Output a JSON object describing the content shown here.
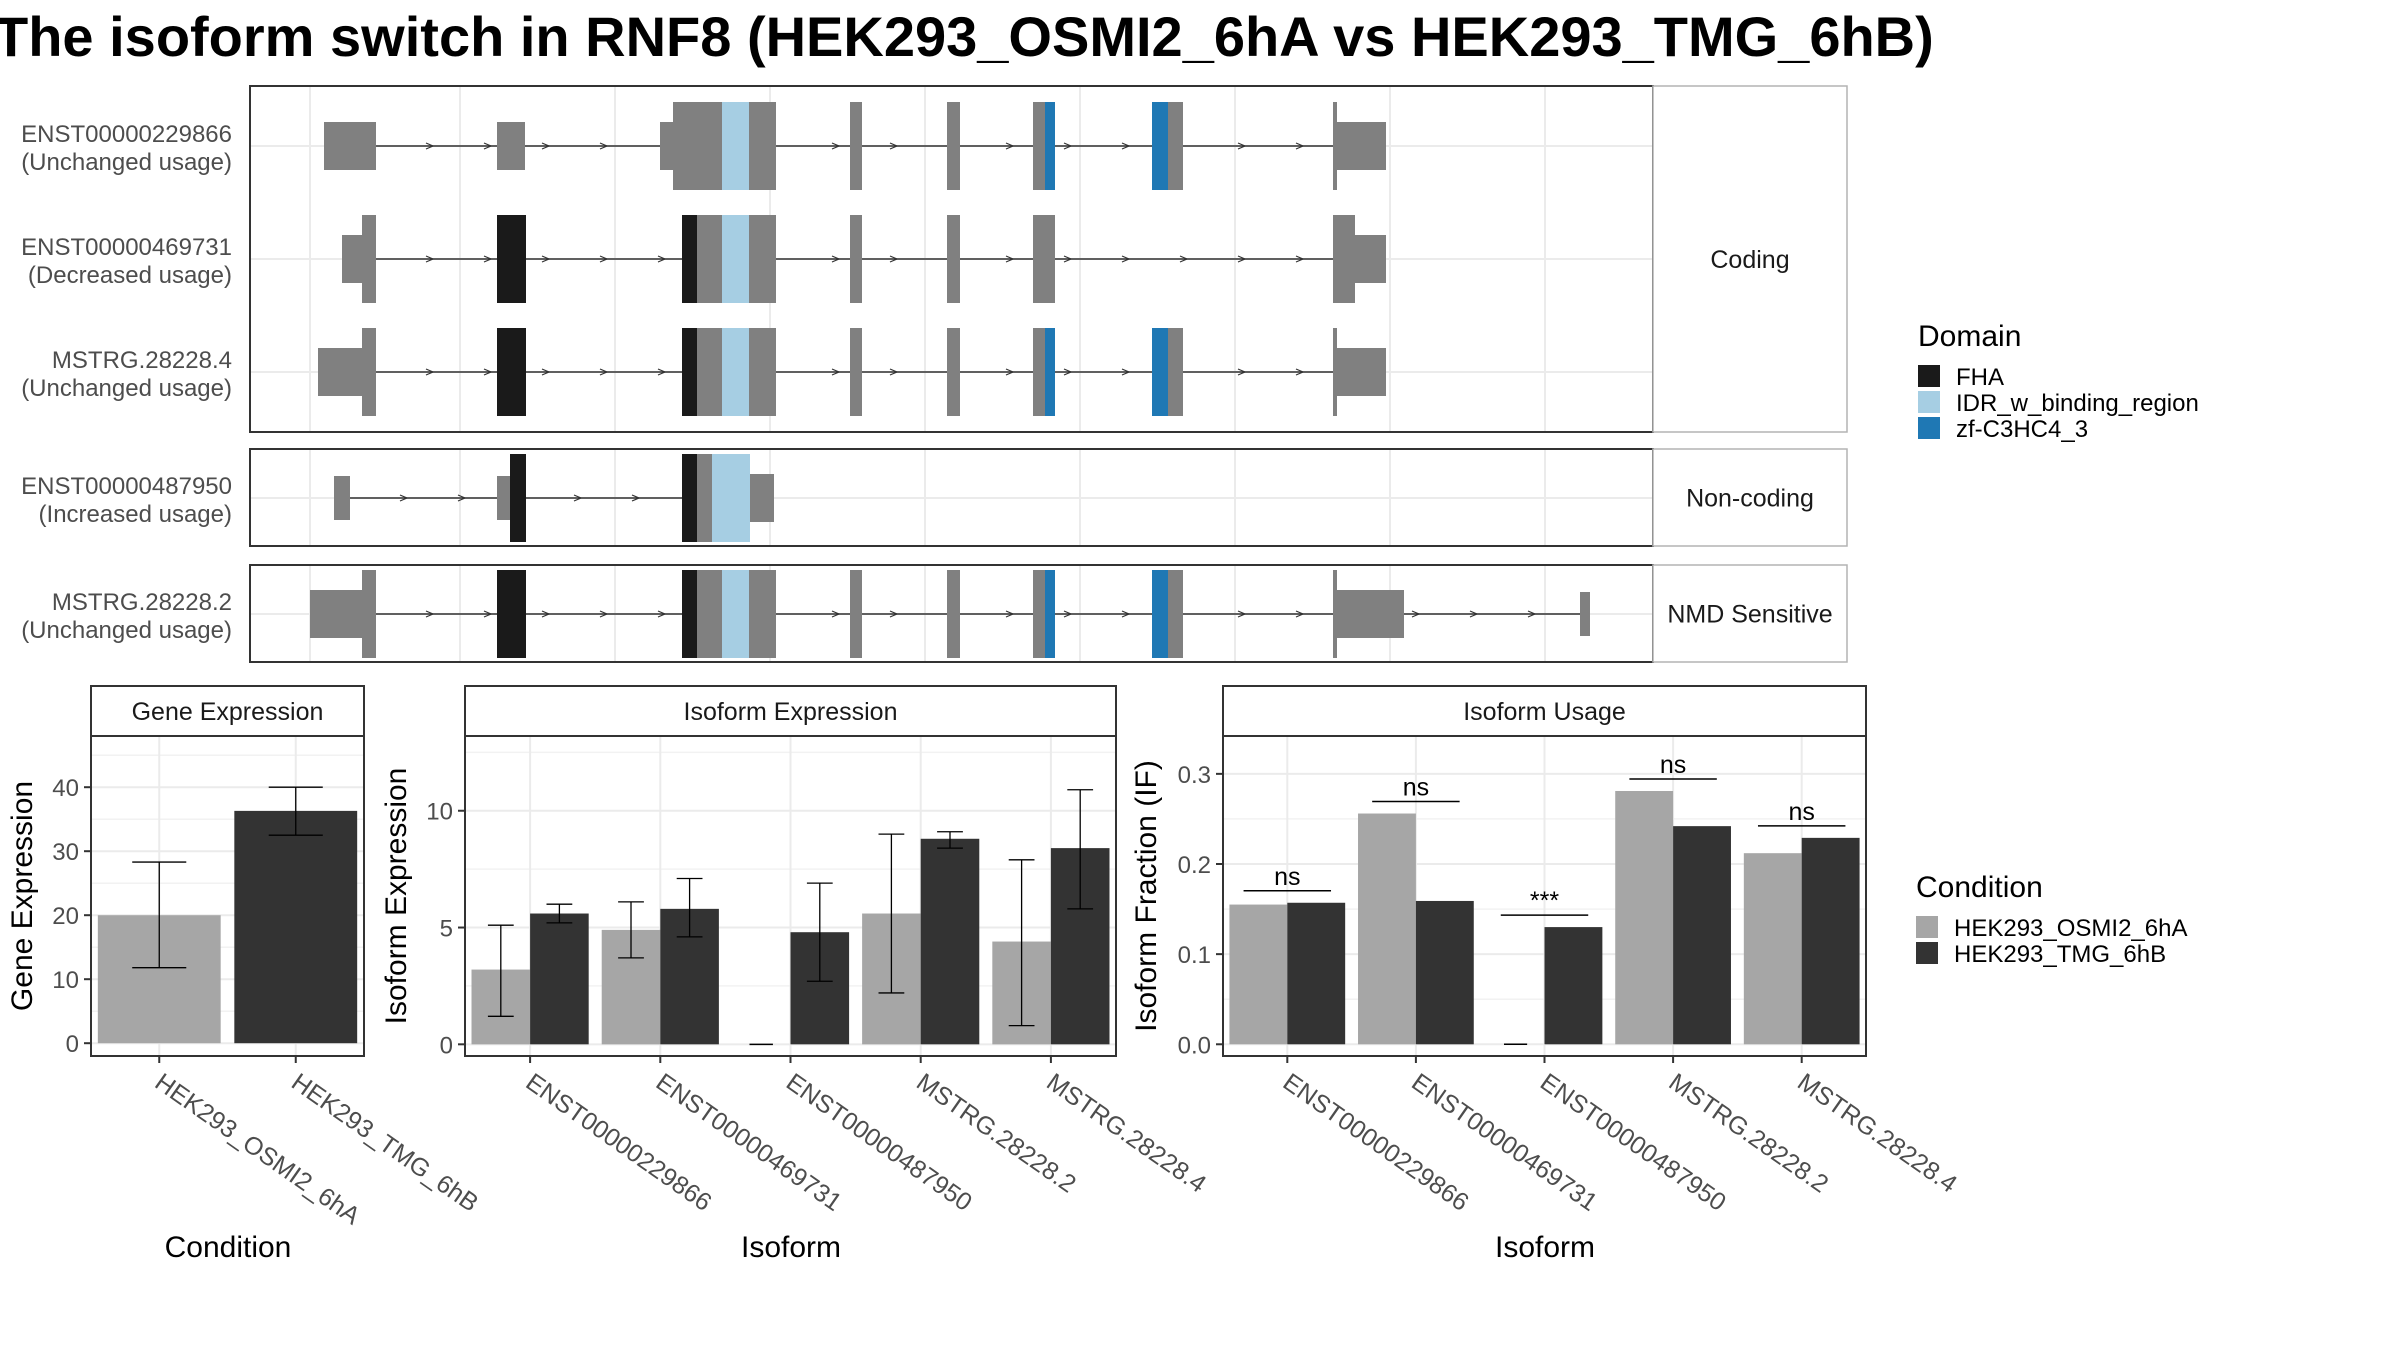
{
  "title": "The isoform switch in RNF8 (HEK293_OSMI2_6hA vs HEK293_TMG_6hB)",
  "colors": {
    "exon": "#808080",
    "FHA": "#1a1a1a",
    "IDR_w_binding_region": "#a6cee3",
    "zf-C3HC4_3": "#1f78b4",
    "cond_A": "#a6a6a6",
    "cond_B": "#333333",
    "grid": "#ebebeb",
    "strip": "#ffffff"
  },
  "structure": {
    "isoforms": [
      {
        "id": "ENST00000229866",
        "usage": "(Unchanged usage)",
        "group": "Coding"
      },
      {
        "id": "ENST00000469731",
        "usage": "(Decreased usage)",
        "group": "Coding"
      },
      {
        "id": "MSTRG.28228.4",
        "usage": "(Unchanged usage)",
        "group": "Coding"
      },
      {
        "id": "ENST00000487950",
        "usage": "(Increased usage)",
        "group": "Non-coding"
      },
      {
        "id": "MSTRG.28228.2",
        "usage": "(Unchanged usage)",
        "group": "NMD Sensitive"
      }
    ],
    "groups": [
      "Coding",
      "Non-coding",
      "NMD Sensitive"
    ]
  },
  "legend_domain": {
    "title": "Domain",
    "items": [
      {
        "label": "FHA",
        "color": "#1a1a1a"
      },
      {
        "label": "IDR_w_binding_region",
        "color": "#a6cee3"
      },
      {
        "label": "zf-C3HC4_3",
        "color": "#1f78b4"
      }
    ]
  },
  "legend_condition": {
    "title": "Condition",
    "items": [
      {
        "label": "HEK293_OSMI2_6hA",
        "color": "#a6a6a6"
      },
      {
        "label": "HEK293_TMG_6hB",
        "color": "#333333"
      }
    ]
  },
  "chart_data": [
    {
      "type": "bar",
      "title": "Gene Expression",
      "xlabel": "Condition",
      "ylabel": "Gene Expression",
      "categories": [
        "HEK293_OSMI2_6hA",
        "HEK293_TMG_6hB"
      ],
      "values": [
        20.0,
        36.3
      ],
      "error_low": [
        11.8,
        32.5
      ],
      "error_high": [
        28.3,
        40.0
      ],
      "ylim": [
        -2,
        48
      ],
      "yticks": [
        0,
        10,
        20,
        30,
        40
      ]
    },
    {
      "type": "bar",
      "title": "Isoform Expression",
      "xlabel": "Isoform",
      "ylabel": "Isoform Expression",
      "categories": [
        "ENST00000229866",
        "ENST00000469731",
        "ENST00000487950",
        "MSTRG.28228.2",
        "MSTRG.28228.4"
      ],
      "series": [
        {
          "name": "HEK293_OSMI2_6hA",
          "values": [
            3.2,
            4.9,
            0.0,
            5.6,
            4.4
          ],
          "error_low": [
            1.2,
            3.7,
            0.0,
            2.2,
            0.8
          ],
          "error_high": [
            5.1,
            6.1,
            0.0,
            9.0,
            7.9
          ]
        },
        {
          "name": "HEK293_TMG_6hB",
          "values": [
            5.6,
            5.8,
            4.8,
            8.8,
            8.4
          ],
          "error_low": [
            5.2,
            4.6,
            2.7,
            8.4,
            5.8
          ],
          "error_high": [
            6.0,
            7.1,
            6.9,
            9.1,
            10.9
          ]
        }
      ],
      "ylim": [
        -0.5,
        13.2
      ],
      "yticks": [
        0,
        5,
        10
      ]
    },
    {
      "type": "bar",
      "title": "Isoform Usage",
      "xlabel": "Isoform",
      "ylabel": "Isoform Fraction (IF)",
      "categories": [
        "ENST00000229866",
        "ENST00000469731",
        "ENST00000487950",
        "MSTRG.28228.2",
        "MSTRG.28228.4"
      ],
      "series": [
        {
          "name": "HEK293_OSMI2_6hA",
          "values": [
            0.155,
            0.256,
            0.0,
            0.281,
            0.212
          ]
        },
        {
          "name": "HEK293_TMG_6hB",
          "values": [
            0.157,
            0.159,
            0.13,
            0.242,
            0.229
          ]
        }
      ],
      "significance": [
        "ns",
        "ns",
        "***",
        "ns",
        "ns"
      ],
      "ylim": [
        -0.013,
        0.342
      ],
      "yticks": [
        "0.0",
        "0.1",
        "0.2",
        "0.3"
      ]
    }
  ]
}
